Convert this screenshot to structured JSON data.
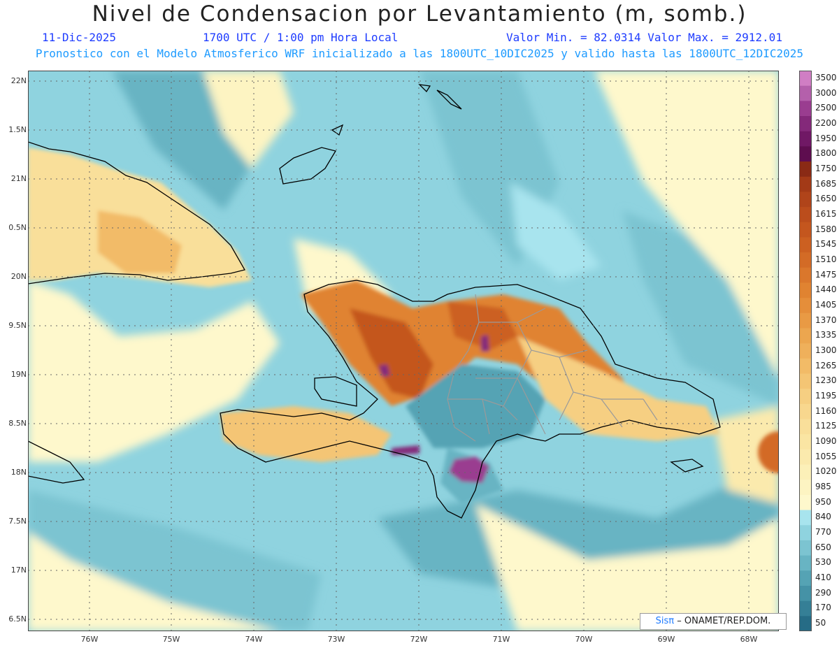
{
  "header": {
    "title": "Nivel de Condensacion por Levantamiento (m, somb.)",
    "date": "11-Dic-2025",
    "time": "1700 UTC / 1:00 pm Hora Local",
    "min_max": "Valor Min. = 82.0314  Valor Max. = 2912.01",
    "model_info": "Pronostico con el Modelo Atmosferico WRF inicializado a las 1800UTC_10DIC2025 y valido hasta las  1800UTC_12DIC2025"
  },
  "axes": {
    "lat_labels": [
      "22N",
      "1.5N",
      "21N",
      "0.5N",
      "20N",
      "9.5N",
      "19N",
      "8.5N",
      "18N",
      "7.5N",
      "17N",
      "6.5N"
    ],
    "lon_labels": [
      "76W",
      "75W",
      "74W",
      "73W",
      "72W",
      "71W",
      "70W",
      "69W",
      "68W"
    ]
  },
  "legend": {
    "labels": [
      "3500",
      "3000",
      "2500",
      "2200",
      "1950",
      "1800",
      "1750",
      "1685",
      "1650",
      "1615",
      "1580",
      "1545",
      "1510",
      "1475",
      "1440",
      "1405",
      "1370",
      "1335",
      "1300",
      "1265",
      "1230",
      "1195",
      "1160",
      "1125",
      "1090",
      "1055",
      "1020",
      "985",
      "950",
      "840",
      "770",
      "650",
      "530",
      "410",
      "290",
      "170",
      "50"
    ],
    "colors": [
      "#d07ec4",
      "#b460ab",
      "#9a3d90",
      "#84297a",
      "#701865",
      "#5e0d4f",
      "#8a2a15",
      "#a33a17",
      "#b0441a",
      "#bb4d1c",
      "#c4561e",
      "#cc6021",
      "#d36b26",
      "#da772c",
      "#e08331",
      "#e58e3a",
      "#e99a44",
      "#eca64f",
      "#efb05b",
      "#f2bb67",
      "#f4c574",
      "#f6cf82",
      "#f8d78e",
      "#f9df9a",
      "#fae5a3",
      "#fbeaad",
      "#fcf0b8",
      "#fdf4c2",
      "#fef8cc",
      "#a8e4ee",
      "#8fd3df",
      "#7cc4d1",
      "#68b4c3",
      "#55a3b4",
      "#4592a6",
      "#357f96",
      "#266c86"
    ]
  },
  "credit": {
    "sis": "Sisπ",
    "rest": "– ONAMET/REP.DOM."
  }
}
